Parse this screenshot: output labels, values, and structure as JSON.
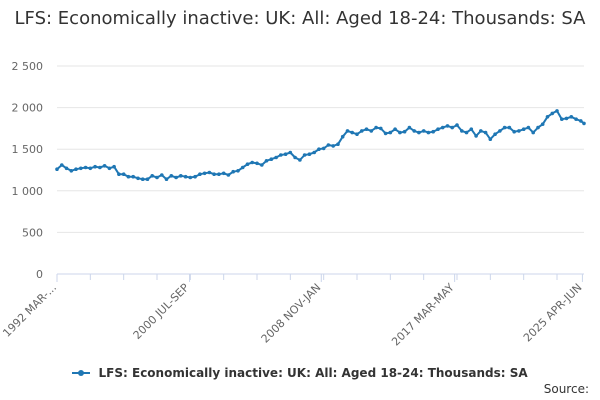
{
  "chart_data": {
    "type": "line",
    "title": "LFS: Economically inactive: UK: All: Aged 18-24: Thousands: SA",
    "xlabel": "",
    "ylabel": "",
    "ylim": [
      0,
      2500
    ],
    "yticks": [
      0,
      500,
      1000,
      1500,
      2000,
      2500
    ],
    "ytick_labels": [
      "0",
      "500",
      "1 000",
      "1 500",
      "2 000",
      "2 500"
    ],
    "xtick_labels": [
      "1992 MAR-...",
      "2000 JUL-SEP",
      "2008 NOV-JAN",
      "2017 MAR-MAY",
      "2025 APR-JUN"
    ],
    "xtick_years": [
      1992.2,
      2000.55,
      2008.85,
      2017.25,
      2025.3
    ],
    "grid": true,
    "legend_position": "bottom",
    "series": [
      {
        "name": "LFS: Economically inactive: UK: All: Aged 18-24: Thousands: SA",
        "color": "#1f77b4",
        "x": [
          1992.2,
          1992.5,
          1992.8,
          1993.1,
          1993.4,
          1993.7,
          1994.0,
          1994.3,
          1994.6,
          1994.9,
          1995.2,
          1995.5,
          1995.8,
          1996.1,
          1996.4,
          1996.7,
          1997.0,
          1997.3,
          1997.6,
          1997.9,
          1998.2,
          1998.5,
          1998.8,
          1999.1,
          1999.4,
          1999.7,
          2000.0,
          2000.3,
          2000.6,
          2000.9,
          2001.2,
          2001.5,
          2001.8,
          2002.1,
          2002.4,
          2002.7,
          2003.0,
          2003.3,
          2003.6,
          2003.9,
          2004.2,
          2004.5,
          2004.8,
          2005.1,
          2005.4,
          2005.7,
          2006.0,
          2006.3,
          2006.6,
          2006.9,
          2007.2,
          2007.5,
          2007.8,
          2008.1,
          2008.4,
          2008.7,
          2009.0,
          2009.3,
          2009.6,
          2009.9,
          2010.2,
          2010.5,
          2010.8,
          2011.1,
          2011.4,
          2011.7,
          2012.0,
          2012.3,
          2012.6,
          2012.9,
          2013.2,
          2013.5,
          2013.8,
          2014.1,
          2014.4,
          2014.7,
          2015.0,
          2015.3,
          2015.6,
          2015.9,
          2016.2,
          2016.5,
          2016.8,
          2017.1,
          2017.4,
          2017.7,
          2018.0,
          2018.3,
          2018.6,
          2018.9,
          2019.2,
          2019.5,
          2019.8,
          2020.1,
          2020.4,
          2020.7,
          2021.0,
          2021.3,
          2021.6,
          2021.9,
          2022.2,
          2022.5,
          2022.8,
          2023.1,
          2023.4,
          2023.7,
          2024.0,
          2024.3,
          2024.6,
          2024.9,
          2025.2,
          2025.4
        ],
        "values": [
          1260,
          1310,
          1270,
          1240,
          1260,
          1270,
          1280,
          1270,
          1290,
          1280,
          1300,
          1270,
          1290,
          1200,
          1200,
          1170,
          1170,
          1150,
          1140,
          1140,
          1180,
          1160,
          1190,
          1140,
          1180,
          1160,
          1180,
          1170,
          1160,
          1170,
          1200,
          1210,
          1220,
          1200,
          1200,
          1210,
          1190,
          1230,
          1240,
          1280,
          1320,
          1340,
          1330,
          1310,
          1360,
          1380,
          1400,
          1430,
          1440,
          1460,
          1400,
          1370,
          1430,
          1440,
          1460,
          1500,
          1510,
          1550,
          1540,
          1560,
          1650,
          1720,
          1700,
          1680,
          1720,
          1740,
          1720,
          1760,
          1750,
          1690,
          1700,
          1740,
          1700,
          1710,
          1760,
          1720,
          1700,
          1720,
          1700,
          1710,
          1740,
          1760,
          1780,
          1760,
          1790,
          1720,
          1700,
          1740,
          1660,
          1720,
          1700,
          1620,
          1680,
          1720,
          1760,
          1760,
          1710,
          1720,
          1740,
          1760,
          1700,
          1760,
          1800,
          1890,
          1930,
          1960,
          1860,
          1870,
          1890,
          1860,
          1840,
          1810
        ]
      }
    ]
  },
  "legend": {
    "label": "LFS: Economically inactive: UK: All: Aged 18-24: Thousands: SA"
  },
  "source": {
    "label": "Source:"
  }
}
